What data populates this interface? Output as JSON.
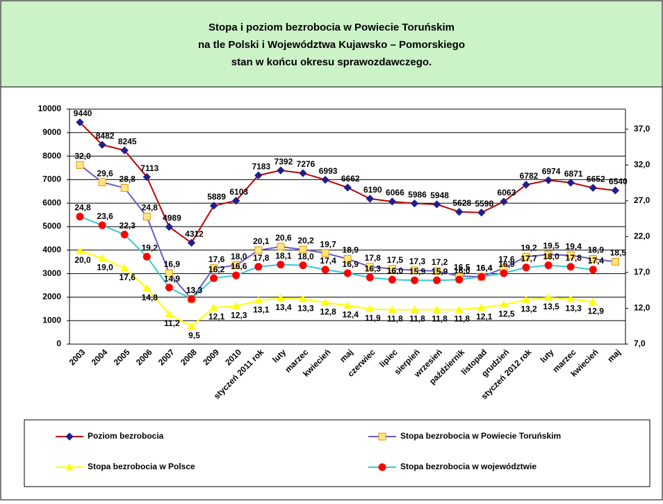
{
  "chart_data": {
    "type": "line",
    "title": [
      "Stopa i poziom bezrobocia w Powiecie Toruńskim",
      "na tle Polski i Województwa Kujawsko – Pomorskiego",
      "stan w końcu okresu sprawozdawczego."
    ],
    "categories": [
      "2003",
      "2004",
      "2005",
      "2006",
      "2007",
      "2008",
      "2009",
      "2010",
      "styczeń 2011 rok",
      "luty",
      "marzec",
      "kwiecień",
      "maj",
      "czerwiec",
      "lipiec",
      "sierpień",
      "wrzesień",
      "październik",
      "listopad",
      "grudzień",
      "styczeń 2012 rok",
      "luty",
      "marzec",
      "kwiecień",
      "maj"
    ],
    "ylim": [
      0,
      10000
    ],
    "yticks": [
      0,
      1000,
      2000,
      3000,
      4000,
      5000,
      6000,
      7000,
      8000,
      9000,
      10000
    ],
    "y2lim": [
      7,
      39.8
    ],
    "y2ticks": [
      {
        "value": 7,
        "label": "7,0"
      },
      {
        "value": 12,
        "label": "12,0"
      },
      {
        "value": 17,
        "label": "17,0"
      },
      {
        "value": 22,
        "label": "22,0"
      },
      {
        "value": 27,
        "label": "27,0"
      },
      {
        "value": 32,
        "label": "32,0"
      },
      {
        "value": 37,
        "label": "37,0"
      }
    ],
    "grid": true,
    "legend": "bottom",
    "series": [
      {
        "name": "Poziom bezrobocia",
        "color": "#c00000",
        "marker": "diamond",
        "marker_color": "#1f1f8f",
        "values": [
          9440,
          8482,
          8245,
          7113,
          4989,
          4312,
          5889,
          6103,
          7183,
          7392,
          7276,
          6993,
          6662,
          6190,
          6066,
          5986,
          5948,
          5628,
          5598,
          6063,
          6782,
          6974,
          6871,
          6652,
          6540
        ]
      },
      {
        "name": "Stopa bezrobocia w Powiecie Toruńskim",
        "color": "#6a5acd",
        "marker": "square",
        "marker_color": "#ffe680",
        "axis": "y2",
        "values": [
          32.0,
          29.6,
          28.8,
          24.8,
          16.9,
          13.3,
          17.6,
          18.0,
          20.1,
          20.6,
          20.2,
          19.7,
          18.9,
          17.8,
          17.5,
          17.3,
          17.2,
          16.5,
          16.4,
          17.6,
          19.2,
          19.5,
          19.4,
          18.9,
          18.5
        ],
        "value_labels": [
          "32,0",
          "29,6",
          "28,8",
          "24,8",
          "16,9",
          "13,3",
          "17,6",
          "18,0",
          "20,1",
          "20,6",
          "20,2",
          "19,7",
          "18,9",
          "17,8",
          "17,5",
          "17,3",
          "17,2",
          "16,5",
          "16,4",
          "17,6",
          "19,2",
          "19,5",
          "19,4",
          "18,9",
          "18,5"
        ]
      },
      {
        "name": "Stopa bezrobocia w Polsce",
        "color": "#ffff00",
        "marker": "triangle",
        "marker_color": "#ffff00",
        "axis": "y2",
        "values": [
          20.0,
          19.0,
          17.6,
          14.8,
          11.2,
          9.5,
          12.1,
          12.3,
          13.1,
          13.4,
          13.3,
          12.8,
          12.4,
          11.9,
          11.8,
          11.8,
          11.8,
          11.8,
          12.1,
          12.5,
          13.2,
          13.5,
          13.3,
          12.9,
          null
        ],
        "value_labels": [
          "20,0",
          "19,0",
          "17,6",
          "14,8",
          "11,2",
          "9,5",
          "12,1",
          "12,3",
          "13,1",
          "13,4",
          "13,3",
          "12,8",
          "12,4",
          "11,9",
          "11,8",
          "11,8",
          "11,8",
          "11,8",
          "12,1",
          "12,5",
          "13,2",
          "13,5",
          "13,3",
          "12,9",
          null
        ]
      },
      {
        "name": "Stopa bezrobocia w województwie",
        "color": "#33cccc",
        "marker": "circle",
        "marker_color": "#ff0000",
        "axis": "y2",
        "values": [
          24.8,
          23.6,
          22.3,
          19.2,
          14.9,
          13.3,
          16.2,
          16.6,
          17.8,
          18.1,
          18.0,
          17.4,
          16.9,
          16.3,
          16.0,
          15.9,
          15.9,
          16.0,
          16.4,
          16.9,
          17.7,
          18.0,
          17.8,
          17.4,
          null
        ],
        "value_labels": [
          "24,8",
          "23,6",
          "22,3",
          "19,2",
          "14,9",
          "13,3",
          "16,2",
          "16,6",
          "17,8",
          "18,1",
          "18,0",
          "17,4",
          "16,9",
          "16,3",
          "16,0",
          "15,9",
          "15,9",
          "16,0",
          "16,4",
          "16,9",
          "17,7",
          "18,0",
          "17,8",
          "17,4",
          null
        ]
      }
    ]
  }
}
